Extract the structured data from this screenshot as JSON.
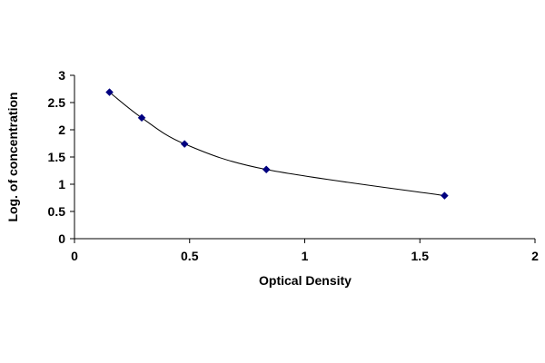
{
  "chart_data": {
    "type": "scatter",
    "title": "",
    "xlabel": "Optical Density",
    "ylabel": "Log. of concentration",
    "xlim": [
      0,
      2
    ],
    "ylim": [
      0,
      3
    ],
    "x_ticks": [
      0,
      0.5,
      1,
      1.5,
      2
    ],
    "x_tick_labels": [
      "0",
      "0.5",
      "1",
      "1.5",
      "2"
    ],
    "y_ticks": [
      0,
      0.5,
      1,
      1.5,
      2,
      2.5,
      3
    ],
    "y_tick_labels": [
      "0",
      "0.5",
      "1",
      "1.5",
      "2",
      "2.5",
      "3"
    ],
    "grid": false,
    "legend": "none",
    "series": [
      {
        "marker": "diamond",
        "line": "smooth",
        "color": "#000080",
        "line_color": "#000000",
        "x": [
          0.152,
          0.292,
          0.478,
          0.833,
          1.607
        ],
        "y": [
          2.69,
          2.22,
          1.74,
          1.27,
          0.79
        ]
      }
    ]
  }
}
